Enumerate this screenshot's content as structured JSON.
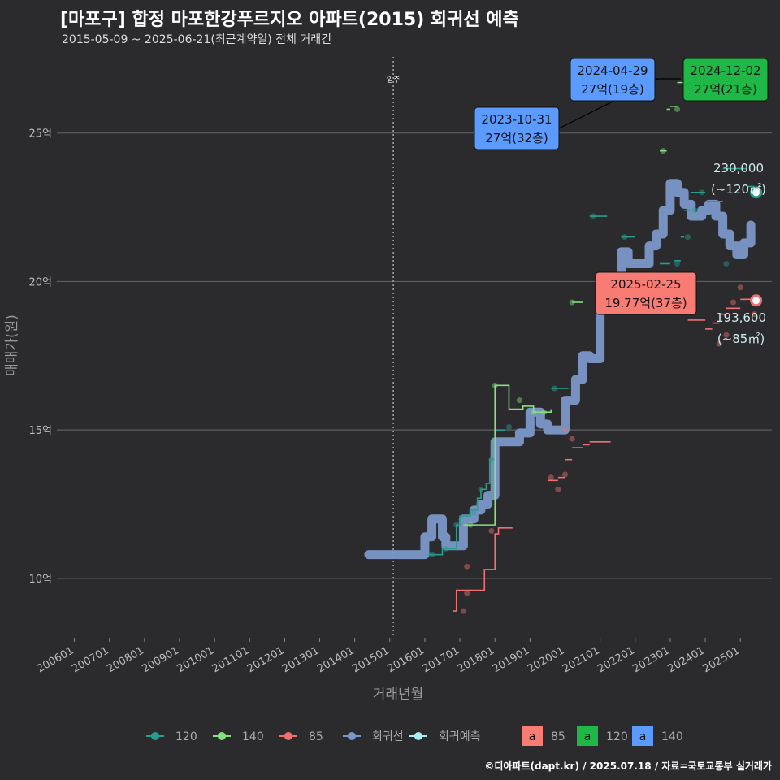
{
  "title": "[마포구] 합정 마포한강푸르지오 아파트(2015) 회귀선 예측",
  "subtitle": "2015-05-09 ~ 2025-06-21(최근계약일) 전체 거래건",
  "credit": "©디아파트(dapt.kr) / 2025.07.18 / 자료=국토교통부 실거래가",
  "chart_data": {
    "type": "line",
    "xlabel": "거래년월",
    "ylabel": "매매가(원)",
    "x_range": [
      2005.5,
      2025.9
    ],
    "ylim": [
      8,
      27.7
    ],
    "x_ticks": [
      "200601",
      "200701",
      "200801",
      "200901",
      "201001",
      "201101",
      "201201",
      "201301",
      "201401",
      "201501",
      "201601",
      "201701",
      "201801",
      "201901",
      "202001",
      "202101",
      "202201",
      "202301",
      "202401",
      "202501"
    ],
    "y_ticks": [
      {
        "value": 10,
        "label": "10억"
      },
      {
        "value": 15,
        "label": "15억"
      },
      {
        "value": 20,
        "label": "20억"
      },
      {
        "value": 25,
        "label": "25억"
      }
    ],
    "move_in": {
      "x": 2015.1,
      "label": "입주"
    },
    "colors": {
      "s120": "#2a9d8f",
      "s140": "#86e07e",
      "s85": "#f07070",
      "regression": "#7b97c9",
      "forecast": "#a8eeee"
    },
    "series": [
      {
        "name": "120",
        "key": "s120",
        "step": [
          [
            2016.1,
            10.8
          ],
          [
            2016.5,
            11.0
          ],
          [
            2016.9,
            11.8
          ],
          [
            2017.0,
            12.1
          ],
          [
            2017.3,
            12.3
          ],
          [
            2017.5,
            12.7
          ],
          [
            2017.6,
            13.0
          ],
          [
            2017.75,
            13.2
          ],
          [
            2017.85,
            14.0
          ],
          [
            2018.0,
            15.0
          ],
          [
            2018.3,
            15.0
          ]
        ],
        "segments": [
          [
            2019.6,
            2020.1,
            16.4
          ],
          [
            2020.7,
            2021.2,
            22.2
          ],
          [
            2021.6,
            2022.0,
            21.5
          ],
          [
            2022.7,
            2023.0,
            20.6
          ],
          [
            2023.1,
            2023.3,
            20.7
          ],
          [
            2023.3,
            2023.4,
            21.5
          ],
          [
            2023.4,
            2023.6,
            22.4
          ],
          [
            2023.6,
            2024.0,
            23.0
          ],
          [
            2024.0,
            2024.5,
            22.7
          ],
          [
            2024.5,
            2024.8,
            23.8
          ],
          [
            2024.8,
            2025.2,
            23.8
          ],
          [
            2025.2,
            2025.4,
            23.2
          ],
          [
            2025.4,
            2025.5,
            23.0
          ]
        ],
        "points": [
          [
            2016.2,
            10.8
          ],
          [
            2016.6,
            11.0
          ],
          [
            2016.9,
            11.8
          ],
          [
            2017.4,
            12.2
          ],
          [
            2017.6,
            13.0
          ],
          [
            2017.9,
            14.0
          ],
          [
            2018.4,
            15.1
          ],
          [
            2019.7,
            16.4
          ],
          [
            2020.8,
            22.2
          ],
          [
            2021.7,
            21.5
          ],
          [
            2023.2,
            20.6
          ],
          [
            2023.5,
            21.5
          ],
          [
            2023.7,
            22.4
          ],
          [
            2023.9,
            23.0
          ],
          [
            2024.6,
            20.6
          ]
        ]
      },
      {
        "name": "140",
        "key": "s140",
        "step": [
          [
            2017.1,
            11.8
          ],
          [
            2017.5,
            11.8
          ],
          [
            2018.0,
            16.5
          ],
          [
            2018.3,
            16.5
          ],
          [
            2018.4,
            15.7
          ],
          [
            2018.8,
            15.8
          ],
          [
            2019.1,
            15.6
          ],
          [
            2019.4,
            15.6
          ],
          [
            2019.6,
            15.7
          ]
        ],
        "segments": [
          [
            2020.2,
            2020.5,
            19.3
          ],
          [
            2021.0,
            2021.3,
            20.2
          ],
          [
            2022.7,
            2022.9,
            24.4
          ],
          [
            2022.9,
            2023.0,
            25.8
          ],
          [
            2023.0,
            2023.2,
            25.9
          ],
          [
            2023.2,
            2023.5,
            26.7
          ],
          [
            2023.5,
            2023.7,
            26.9
          ],
          [
            2023.7,
            2023.9,
            27.0
          ],
          [
            2023.9,
            2024.0,
            27.1
          ]
        ],
        "points": [
          [
            2017.3,
            11.8
          ],
          [
            2018.0,
            16.5
          ],
          [
            2018.7,
            16.0
          ],
          [
            2019.1,
            15.6
          ],
          [
            2019.4,
            15.6
          ],
          [
            2020.2,
            19.3
          ],
          [
            2021.0,
            20.2
          ],
          [
            2022.8,
            24.4
          ],
          [
            2023.2,
            25.8
          ],
          [
            2023.5,
            26.6
          ],
          [
            2023.7,
            27.0
          ],
          [
            2024.9,
            27.0
          ]
        ]
      },
      {
        "name": "85",
        "key": "s85",
        "step": [
          [
            2016.8,
            8.9
          ],
          [
            2016.9,
            9.6
          ],
          [
            2017.5,
            9.6
          ],
          [
            2017.7,
            10.3
          ],
          [
            2018.0,
            11.5
          ],
          [
            2018.1,
            11.7
          ],
          [
            2018.5,
            11.7
          ]
        ],
        "segments": [
          [
            2019.5,
            2019.8,
            13.3
          ],
          [
            2019.8,
            2020.0,
            13.4
          ],
          [
            2020.0,
            2020.2,
            14.0
          ],
          [
            2020.2,
            2020.5,
            14.4
          ],
          [
            2020.5,
            2020.7,
            14.5
          ],
          [
            2020.7,
            2021.3,
            14.6
          ],
          [
            2021.0,
            2021.4,
            20.2
          ],
          [
            2023.5,
            2024.0,
            18.7
          ],
          [
            2024.0,
            2024.2,
            18.4
          ],
          [
            2024.2,
            2024.4,
            18.6
          ],
          [
            2024.4,
            2024.6,
            18.9
          ],
          [
            2024.6,
            2025.0,
            19.1
          ],
          [
            2025.0,
            2025.1,
            19.4
          ],
          [
            2025.1,
            2025.5,
            19.4
          ]
        ],
        "points": [
          [
            2017.1,
            8.9
          ],
          [
            2017.2,
            9.5
          ],
          [
            2017.2,
            10.4
          ],
          [
            2017.9,
            11.6
          ],
          [
            2019.6,
            13.4
          ],
          [
            2019.8,
            13.0
          ],
          [
            2020.0,
            13.5
          ],
          [
            2020.2,
            14.7
          ],
          [
            2020.0,
            15.0
          ],
          [
            2021.1,
            20.2
          ],
          [
            2024.4,
            17.9
          ],
          [
            2024.6,
            18.2
          ],
          [
            2024.8,
            19.3
          ],
          [
            2025.0,
            19.8
          ],
          [
            2025.4,
            18.9
          ]
        ]
      },
      {
        "name": "회귀선",
        "key": "regression",
        "step": [
          [
            2014.4,
            10.8
          ],
          [
            2015.8,
            10.8
          ],
          [
            2016.0,
            11.4
          ],
          [
            2016.2,
            12.0
          ],
          [
            2016.5,
            11.4
          ],
          [
            2016.6,
            11.1
          ],
          [
            2016.9,
            11.1
          ],
          [
            2017.1,
            12.0
          ],
          [
            2017.4,
            12.3
          ],
          [
            2017.6,
            12.5
          ],
          [
            2017.8,
            12.8
          ],
          [
            2018.0,
            14.6
          ],
          [
            2018.4,
            14.6
          ],
          [
            2018.7,
            14.9
          ],
          [
            2019.0,
            15.6
          ],
          [
            2019.3,
            15.2
          ],
          [
            2019.5,
            15.0
          ],
          [
            2019.8,
            15.0
          ],
          [
            2020.0,
            16.0
          ],
          [
            2020.3,
            16.7
          ],
          [
            2020.5,
            17.5
          ],
          [
            2020.7,
            17.4
          ],
          [
            2021.0,
            19.3
          ],
          [
            2021.2,
            19.8
          ],
          [
            2021.5,
            19.8
          ],
          [
            2021.6,
            21.0
          ],
          [
            2021.8,
            20.6
          ],
          [
            2022.2,
            20.6
          ],
          [
            2022.4,
            21.2
          ],
          [
            2022.6,
            21.6
          ],
          [
            2022.8,
            22.4
          ],
          [
            2023.0,
            23.3
          ],
          [
            2023.2,
            23.0
          ],
          [
            2023.4,
            22.6
          ],
          [
            2023.6,
            22.2
          ],
          [
            2023.9,
            22.4
          ],
          [
            2024.1,
            22.6
          ],
          [
            2024.3,
            22.2
          ],
          [
            2024.5,
            21.6
          ],
          [
            2024.7,
            21.2
          ],
          [
            2024.9,
            20.9
          ],
          [
            2025.1,
            21.3
          ],
          [
            2025.3,
            21.9
          ]
        ]
      },
      {
        "name": "회귀예측",
        "key": "forecast",
        "points": [
          [
            2025.45,
            23.0
          ],
          [
            2025.45,
            19.36
          ]
        ]
      }
    ],
    "callouts": [
      {
        "date": "2023-10-31",
        "label": "27억(32층)",
        "fill": "#5b9bff"
      },
      {
        "date": "2024-04-29",
        "label": "27억(19층)",
        "fill": "#5b9bff"
      },
      {
        "date": "2024-12-02",
        "label": "27억(21층)",
        "fill": "#1fb847"
      },
      {
        "date": "2025-02-25",
        "label": "19.77억(37층)",
        "fill": "#f87b74"
      }
    ],
    "forecast_annotations": [
      {
        "value_label": "230,000",
        "area_label": "(~120㎡)"
      },
      {
        "value_label": "193,600",
        "area_label": "(~85㎡)"
      }
    ],
    "legend": {
      "lines": [
        "120",
        "140",
        "85",
        "회귀선",
        "회귀예측"
      ],
      "boxes": [
        {
          "text": "a",
          "label": "85",
          "color": "#f87b74"
        },
        {
          "text": "a",
          "label": "120",
          "color": "#1fb847"
        },
        {
          "text": "a",
          "label": "140",
          "color": "#5b9bff"
        }
      ]
    }
  }
}
